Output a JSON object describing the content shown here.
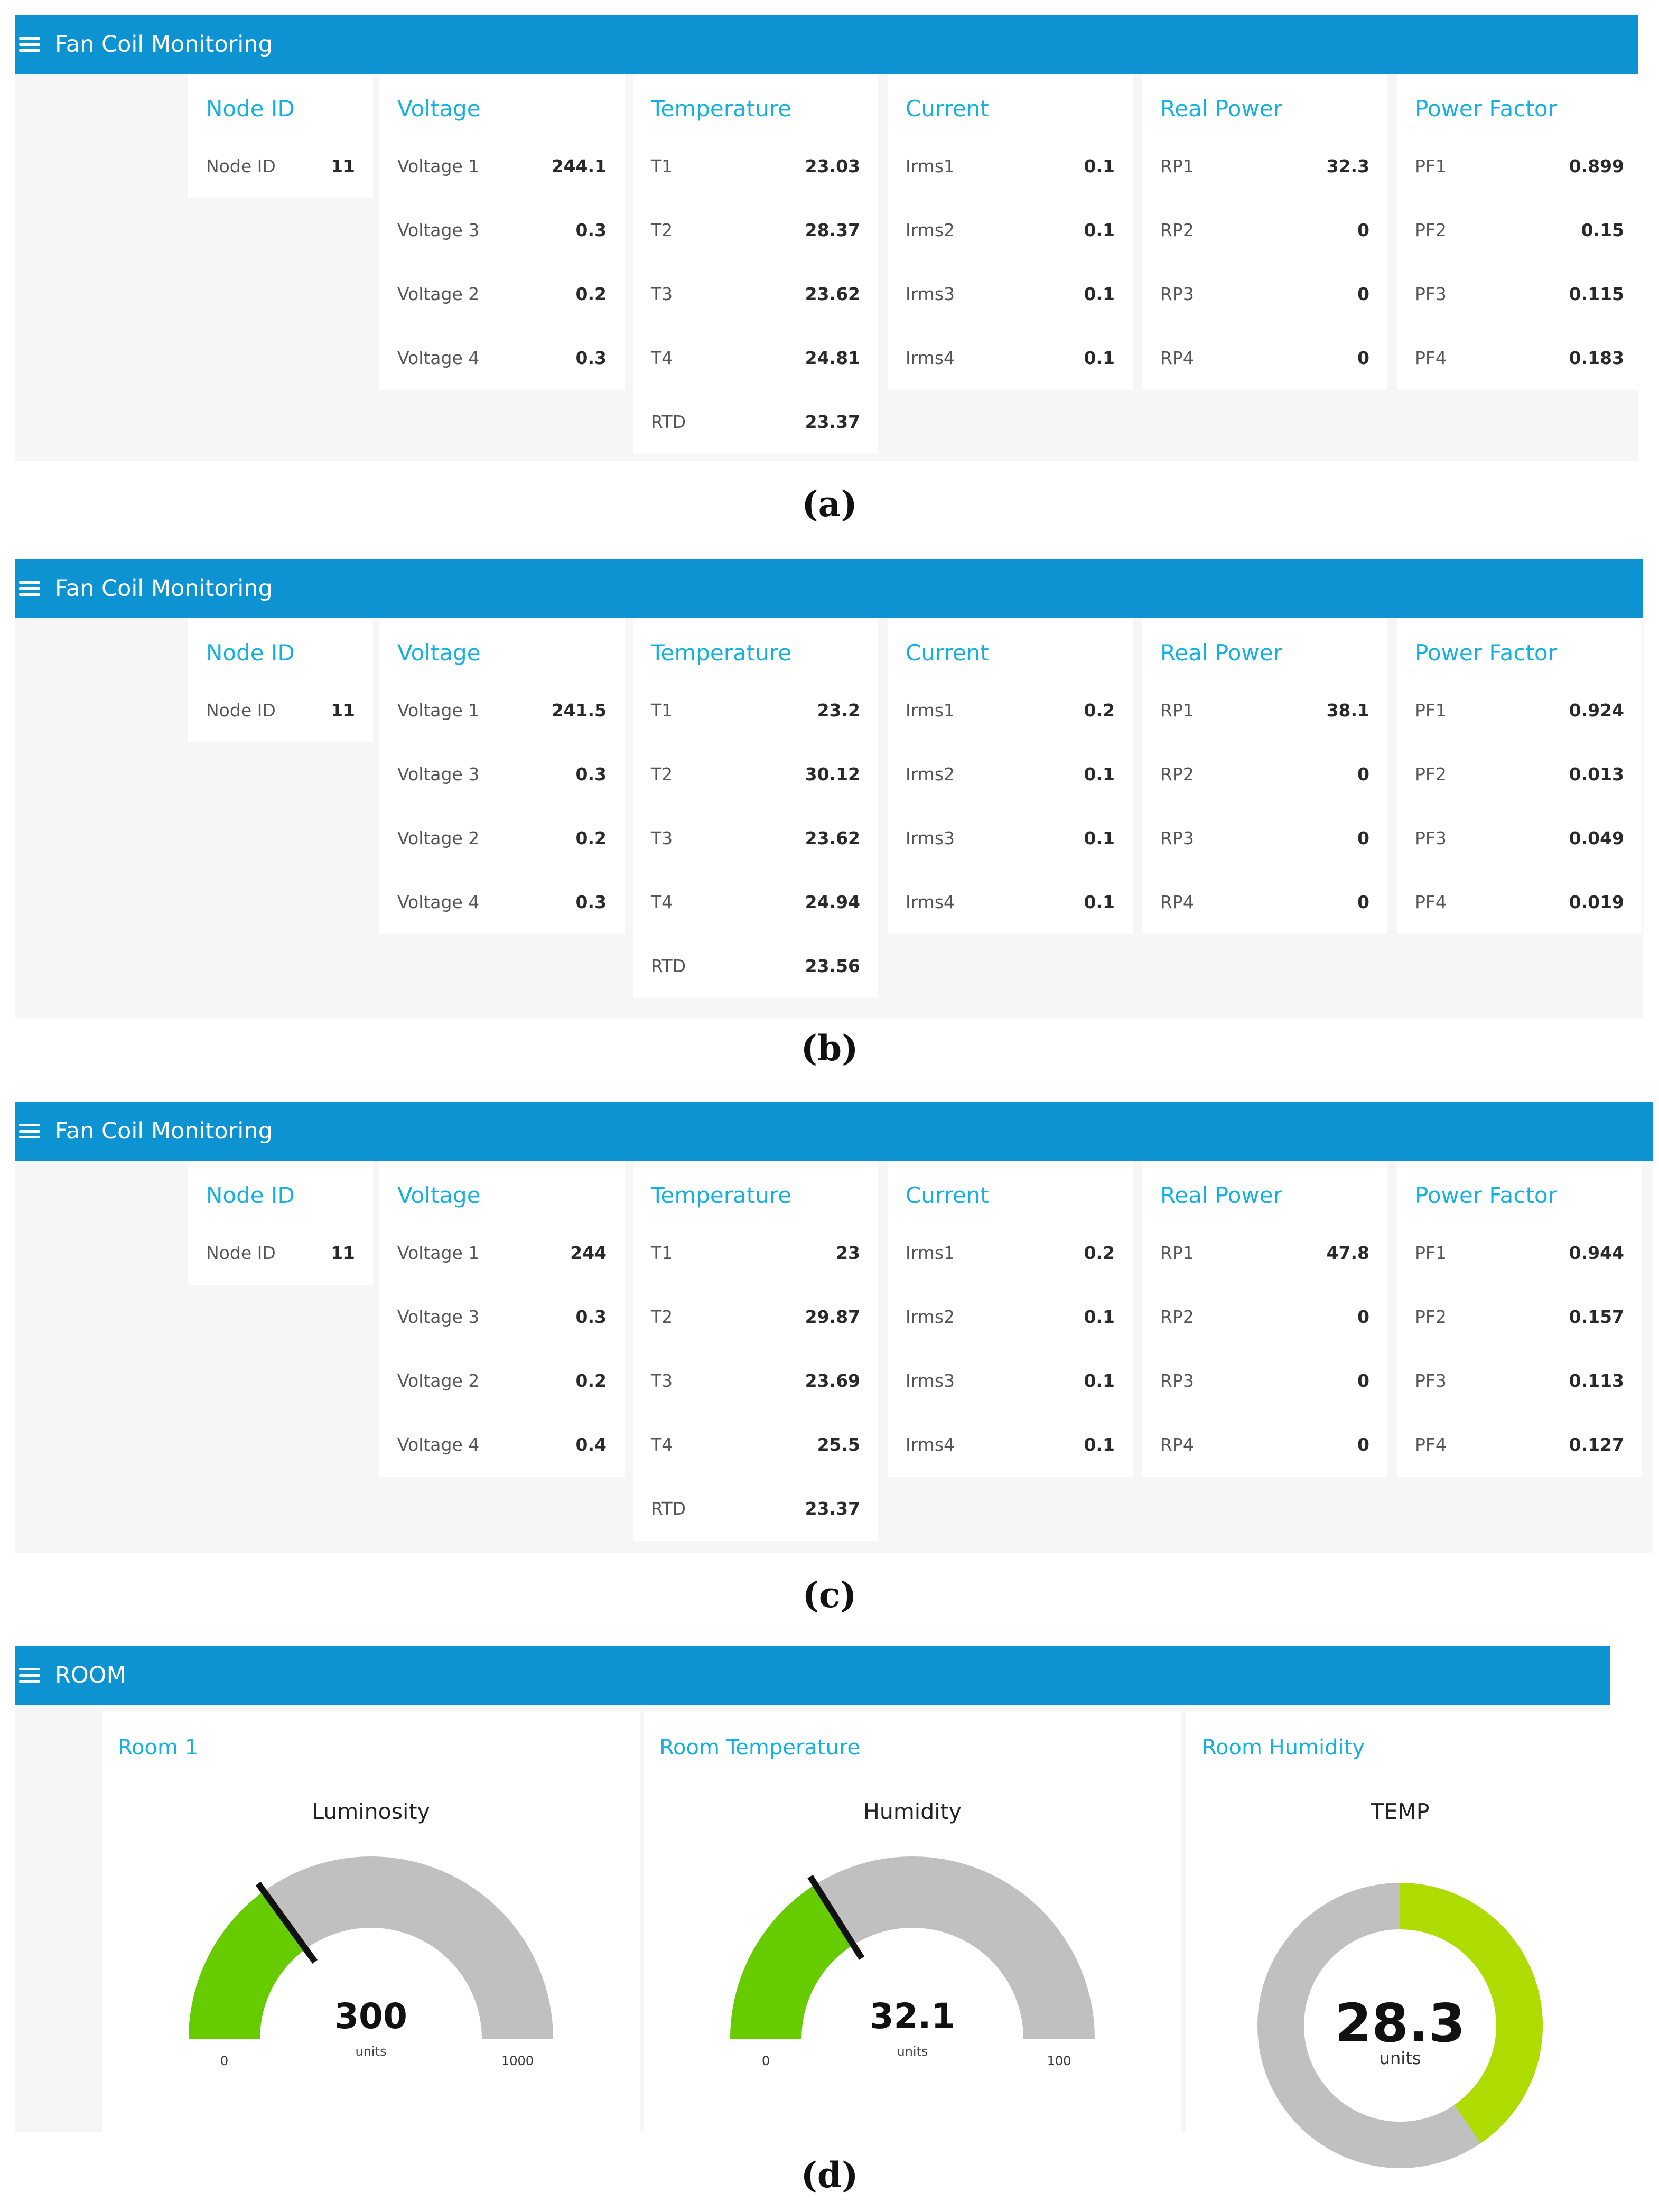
{
  "panels": [
    {
      "title": "Fan Coil Monitoring",
      "caption": "(a)",
      "node": {
        "heading": "Node ID",
        "label": "Node ID",
        "value": "11"
      },
      "voltage": {
        "heading": "Voltage",
        "rows": [
          {
            "label": "Voltage 1",
            "value": "244.1"
          },
          {
            "label": "Voltage 3",
            "value": "0.3"
          },
          {
            "label": "Voltage 2",
            "value": "0.2"
          },
          {
            "label": "Voltage 4",
            "value": "0.3"
          }
        ]
      },
      "temperature": {
        "heading": "Temperature",
        "rows": [
          {
            "label": "T1",
            "value": "23.03"
          },
          {
            "label": "T2",
            "value": "28.37"
          },
          {
            "label": "T3",
            "value": "23.62"
          },
          {
            "label": "T4",
            "value": "24.81"
          },
          {
            "label": "RTD",
            "value": "23.37"
          }
        ]
      },
      "current": {
        "heading": "Current",
        "rows": [
          {
            "label": "Irms1",
            "value": "0.1"
          },
          {
            "label": "Irms2",
            "value": "0.1"
          },
          {
            "label": "Irms3",
            "value": "0.1"
          },
          {
            "label": "Irms4",
            "value": "0.1"
          }
        ]
      },
      "real_power": {
        "heading": "Real Power",
        "rows": [
          {
            "label": "RP1",
            "value": "32.3"
          },
          {
            "label": "RP2",
            "value": "0"
          },
          {
            "label": "RP3",
            "value": "0"
          },
          {
            "label": "RP4",
            "value": "0"
          }
        ]
      },
      "power_factor": {
        "heading": "Power Factor",
        "rows": [
          {
            "label": "PF1",
            "value": "0.899"
          },
          {
            "label": "PF2",
            "value": "0.15"
          },
          {
            "label": "PF3",
            "value": "0.115"
          },
          {
            "label": "PF4",
            "value": "0.183"
          }
        ]
      }
    },
    {
      "title": "Fan Coil Monitoring",
      "caption": "(b)",
      "node": {
        "heading": "Node ID",
        "label": "Node ID",
        "value": "11"
      },
      "voltage": {
        "heading": "Voltage",
        "rows": [
          {
            "label": "Voltage 1",
            "value": "241.5"
          },
          {
            "label": "Voltage 3",
            "value": "0.3"
          },
          {
            "label": "Voltage 2",
            "value": "0.2"
          },
          {
            "label": "Voltage 4",
            "value": "0.3"
          }
        ]
      },
      "temperature": {
        "heading": "Temperature",
        "rows": [
          {
            "label": "T1",
            "value": "23.2"
          },
          {
            "label": "T2",
            "value": "30.12"
          },
          {
            "label": "T3",
            "value": "23.62"
          },
          {
            "label": "T4",
            "value": "24.94"
          },
          {
            "label": "RTD",
            "value": "23.56"
          }
        ]
      },
      "current": {
        "heading": "Current",
        "rows": [
          {
            "label": "Irms1",
            "value": "0.2"
          },
          {
            "label": "Irms2",
            "value": "0.1"
          },
          {
            "label": "Irms3",
            "value": "0.1"
          },
          {
            "label": "Irms4",
            "value": "0.1"
          }
        ]
      },
      "real_power": {
        "heading": "Real Power",
        "rows": [
          {
            "label": "RP1",
            "value": "38.1"
          },
          {
            "label": "RP2",
            "value": "0"
          },
          {
            "label": "RP3",
            "value": "0"
          },
          {
            "label": "RP4",
            "value": "0"
          }
        ]
      },
      "power_factor": {
        "heading": "Power Factor",
        "rows": [
          {
            "label": "PF1",
            "value": "0.924"
          },
          {
            "label": "PF2",
            "value": "0.013"
          },
          {
            "label": "PF3",
            "value": "0.049"
          },
          {
            "label": "PF4",
            "value": "0.019"
          }
        ]
      }
    },
    {
      "title": "Fan Coil Monitoring",
      "caption": "(c)",
      "node": {
        "heading": "Node ID",
        "label": "Node ID",
        "value": "11"
      },
      "voltage": {
        "heading": "Voltage",
        "rows": [
          {
            "label": "Voltage 1",
            "value": "244"
          },
          {
            "label": "Voltage 3",
            "value": "0.3"
          },
          {
            "label": "Voltage 2",
            "value": "0.2"
          },
          {
            "label": "Voltage 4",
            "value": "0.4"
          }
        ]
      },
      "temperature": {
        "heading": "Temperature",
        "rows": [
          {
            "label": "T1",
            "value": "23"
          },
          {
            "label": "T2",
            "value": "29.87"
          },
          {
            "label": "T3",
            "value": "23.69"
          },
          {
            "label": "T4",
            "value": "25.5"
          },
          {
            "label": "RTD",
            "value": "23.37"
          }
        ]
      },
      "current": {
        "heading": "Current",
        "rows": [
          {
            "label": "Irms1",
            "value": "0.2"
          },
          {
            "label": "Irms2",
            "value": "0.1"
          },
          {
            "label": "Irms3",
            "value": "0.1"
          },
          {
            "label": "Irms4",
            "value": "0.1"
          }
        ]
      },
      "real_power": {
        "heading": "Real Power",
        "rows": [
          {
            "label": "RP1",
            "value": "47.8"
          },
          {
            "label": "RP2",
            "value": "0"
          },
          {
            "label": "RP3",
            "value": "0"
          },
          {
            "label": "RP4",
            "value": "0"
          }
        ]
      },
      "power_factor": {
        "heading": "Power Factor",
        "rows": [
          {
            "label": "PF1",
            "value": "0.944"
          },
          {
            "label": "PF2",
            "value": "0.157"
          },
          {
            "label": "PF3",
            "value": "0.113"
          },
          {
            "label": "PF4",
            "value": "0.127"
          }
        ]
      }
    }
  ],
  "room": {
    "title": "ROOM",
    "caption": "(d)",
    "cards": [
      {
        "title": "Room 1",
        "gauge_label": "Luminosity",
        "value": "300",
        "units": "units",
        "min": "0",
        "max": "1000",
        "level": 300,
        "range_min": 0,
        "range_max": 1000,
        "color": "#66cc00"
      },
      {
        "title": "Room Temperature",
        "gauge_label": "Humidity",
        "value": "32.1",
        "units": "units",
        "min": "0",
        "max": "100",
        "level": 32.1,
        "range_min": 0,
        "range_max": 100,
        "color": "#66cc00"
      },
      {
        "title": "Room Humidity",
        "gauge_label": "TEMP",
        "value": "28.3",
        "units": "units",
        "level": 28.3,
        "range_min": 0,
        "range_max": 70,
        "color": "#aedb00"
      }
    ]
  },
  "colors": {
    "header": "#0d92d2",
    "heading_text": "#14b0df",
    "gauge_track": "#c0c0c0"
  }
}
